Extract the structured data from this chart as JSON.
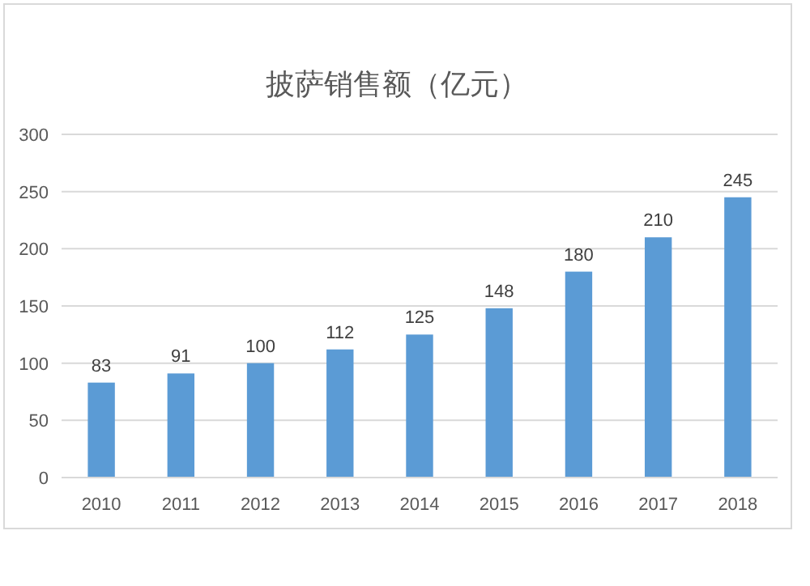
{
  "chart_data": {
    "type": "bar",
    "title": "披萨销售额（亿元）",
    "categories": [
      "2010",
      "2011",
      "2012",
      "2013",
      "2014",
      "2015",
      "2016",
      "2017",
      "2018"
    ],
    "values": [
      83,
      91,
      100,
      112,
      125,
      148,
      180,
      210,
      245
    ],
    "color": "#5b9bd5",
    "ylim": [
      0,
      300
    ],
    "yticks": [
      0,
      50,
      100,
      150,
      200,
      250,
      300
    ],
    "grid": "y",
    "data_labels": true
  }
}
